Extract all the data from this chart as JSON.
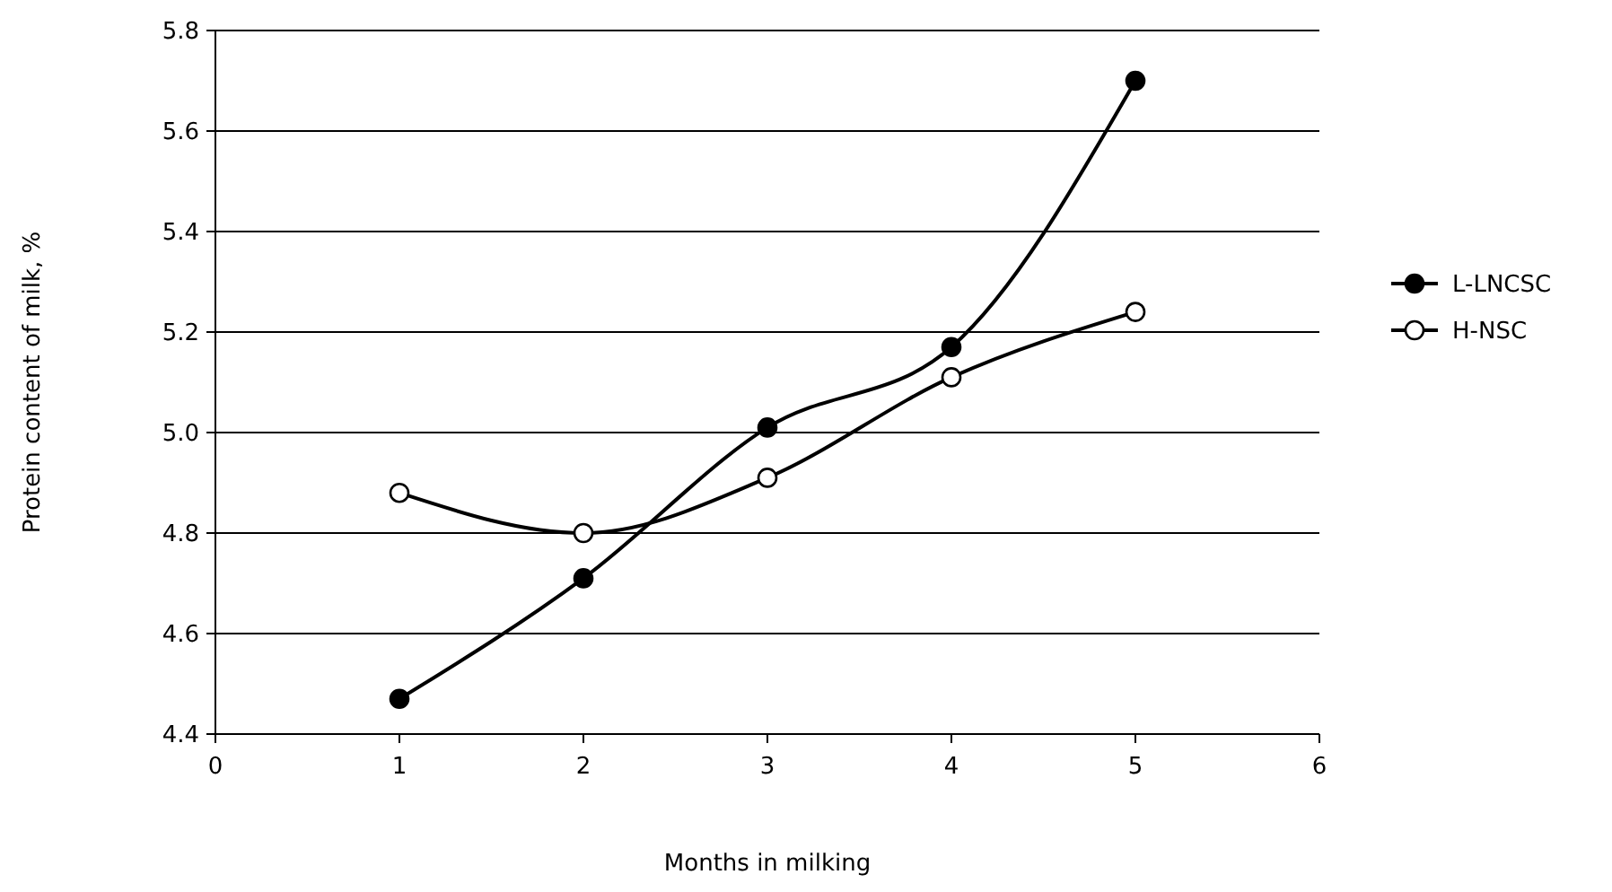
{
  "chart_data": {
    "type": "line",
    "xlabel": "Months in milking",
    "ylabel": "Protein content of milk, %",
    "x": [
      1,
      2,
      3,
      4,
      5
    ],
    "series": [
      {
        "name": "L-LNCSC",
        "color": "#000000",
        "values": [
          4.47,
          4.71,
          5.01,
          5.17,
          5.7
        ]
      },
      {
        "name": "H-NSC",
        "color": "#000000",
        "values": [
          4.88,
          4.8,
          4.91,
          5.11,
          5.24
        ]
      }
    ],
    "xlim": [
      0,
      6
    ],
    "xticks": [
      0,
      1,
      2,
      3,
      4,
      5,
      6
    ],
    "ylim": [
      4.4,
      5.8
    ],
    "yticks": [
      {
        "value": 4.4,
        "label": "4.4"
      },
      {
        "value": 4.6,
        "label": "4.6"
      },
      {
        "value": 4.8,
        "label": "4.8"
      },
      {
        "value": 5.0,
        "label": "5.0"
      },
      {
        "value": 5.2,
        "label": "5.2"
      },
      {
        "value": 5.4,
        "label": "5.4"
      },
      {
        "value": 5.6,
        "label": "5.6"
      },
      {
        "value": 5.8,
        "label": "5.8"
      }
    ],
    "grid": "y",
    "legend": "right",
    "marker": "circle",
    "line_style": "solid"
  }
}
